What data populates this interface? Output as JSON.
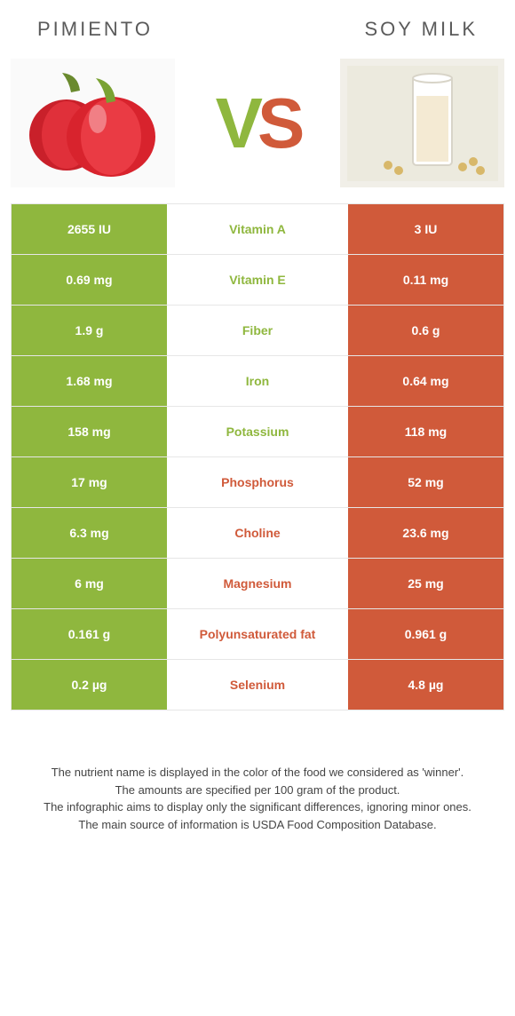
{
  "titles": {
    "left": "Pimiento",
    "right": "Soy milk"
  },
  "vs": {
    "v": "V",
    "s": "S"
  },
  "colors": {
    "left_block": "#8fb73e",
    "right_block": "#d05a3a",
    "left_text": "#8fb73e",
    "right_text": "#d05a3a",
    "title_text": "#5b5b5b",
    "border": "#e6e6e6"
  },
  "table": {
    "rows": [
      {
        "left": "2655 IU",
        "name": "Vitamin A",
        "right": "3 IU",
        "winner": "left"
      },
      {
        "left": "0.69 mg",
        "name": "Vitamin E",
        "right": "0.11 mg",
        "winner": "left"
      },
      {
        "left": "1.9 g",
        "name": "Fiber",
        "right": "0.6 g",
        "winner": "left"
      },
      {
        "left": "1.68 mg",
        "name": "Iron",
        "right": "0.64 mg",
        "winner": "left"
      },
      {
        "left": "158 mg",
        "name": "Potassium",
        "right": "118 mg",
        "winner": "left"
      },
      {
        "left": "17 mg",
        "name": "Phosphorus",
        "right": "52 mg",
        "winner": "right"
      },
      {
        "left": "6.3 mg",
        "name": "Choline",
        "right": "23.6 mg",
        "winner": "right"
      },
      {
        "left": "6 mg",
        "name": "Magnesium",
        "right": "25 mg",
        "winner": "right"
      },
      {
        "left": "0.161 g",
        "name": "Polyunsaturated fat",
        "right": "0.961 g",
        "winner": "right"
      },
      {
        "left": "0.2 µg",
        "name": "Selenium",
        "right": "4.8 µg",
        "winner": "right"
      }
    ]
  },
  "footnote": {
    "l1": "The nutrient name is displayed in the color of the food we considered as 'winner'.",
    "l2": "The amounts are specified per 100 gram of the product.",
    "l3": "The infographic aims to display only the significant differences, ignoring minor ones.",
    "l4": "The main source of information is USDA Food Composition Database."
  }
}
